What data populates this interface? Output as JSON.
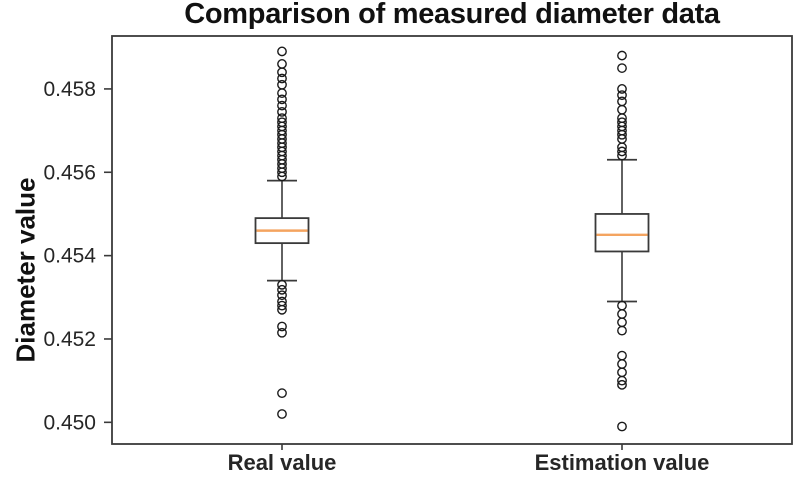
{
  "chart_data": {
    "type": "boxplot",
    "title": "Comparison of measured diameter data",
    "ylabel": "Diameter value",
    "xlabel": "",
    "categories": [
      "Real value",
      "Estimation value"
    ],
    "y_ticks": [
      0.45,
      0.452,
      0.454,
      0.456,
      0.458
    ],
    "y_tick_labels": [
      "0.450",
      "0.452",
      "0.454",
      "0.456",
      "0.458"
    ],
    "ylim": [
      0.44948,
      0.45927
    ],
    "grid": false,
    "legend": "none",
    "colors": {
      "box_line": "#3a3a3a",
      "median": "#f4a460",
      "outlier_stroke": "#1a1a1a",
      "text": "#262626",
      "background": "#ffffff"
    },
    "series": [
      {
        "name": "Real value",
        "whislo": 0.4534,
        "q1": 0.4543,
        "med": 0.4546,
        "q3": 0.4549,
        "whishi": 0.4558,
        "outliers_high": [
          0.4589,
          0.4586,
          0.4584,
          0.45825,
          0.4581,
          0.4579,
          0.45775,
          0.4576,
          0.45745,
          0.4573,
          0.4572,
          0.4571,
          0.457,
          0.4569,
          0.4568,
          0.4567,
          0.4566,
          0.4565,
          0.4564,
          0.4563,
          0.4562,
          0.4561,
          0.456,
          0.4559
        ],
        "outliers_low": [
          0.4533,
          0.45318,
          0.45305,
          0.4529,
          0.4528,
          0.4527,
          0.4523,
          0.45215,
          0.4507,
          0.4502
        ]
      },
      {
        "name": "Estimation value",
        "whislo": 0.4529,
        "q1": 0.4541,
        "med": 0.4545,
        "q3": 0.455,
        "whishi": 0.4563,
        "outliers_high": [
          0.4588,
          0.4585,
          0.458,
          0.45785,
          0.4577,
          0.4575,
          0.4573,
          0.4572,
          0.4571,
          0.457,
          0.4569,
          0.4568,
          0.4566,
          0.4565,
          0.4564
        ],
        "outliers_low": [
          0.4528,
          0.4526,
          0.4524,
          0.4522,
          0.4516,
          0.4514,
          0.4512,
          0.451,
          0.4509,
          0.4499
        ]
      }
    ]
  }
}
